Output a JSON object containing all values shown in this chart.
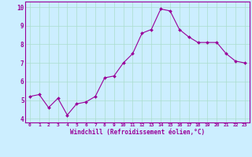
{
  "x": [
    0,
    1,
    2,
    3,
    4,
    5,
    6,
    7,
    8,
    9,
    10,
    11,
    12,
    13,
    14,
    15,
    16,
    17,
    18,
    19,
    20,
    21,
    22,
    23
  ],
  "y": [
    5.2,
    5.3,
    4.6,
    5.1,
    4.2,
    4.8,
    4.9,
    5.2,
    6.2,
    6.3,
    7.0,
    7.5,
    8.6,
    8.8,
    9.9,
    9.8,
    8.8,
    8.4,
    8.1,
    8.1,
    8.1,
    7.5,
    7.1,
    7.0
  ],
  "line_color": "#990099",
  "marker_color": "#990099",
  "bg_color": "#cceeff",
  "grid_color": "#aaddcc",
  "xlabel": "Windchill (Refroidissement éolien,°C)",
  "xlabel_color": "#990099",
  "tick_color": "#990099",
  "ylim": [
    3.8,
    10.3
  ],
  "xlim": [
    -0.5,
    23.5
  ],
  "yticks": [
    4,
    5,
    6,
    7,
    8,
    9,
    10
  ],
  "xticks": [
    0,
    1,
    2,
    3,
    4,
    5,
    6,
    7,
    8,
    9,
    10,
    11,
    12,
    13,
    14,
    15,
    16,
    17,
    18,
    19,
    20,
    21,
    22,
    23
  ],
  "spine_color": "#990099"
}
